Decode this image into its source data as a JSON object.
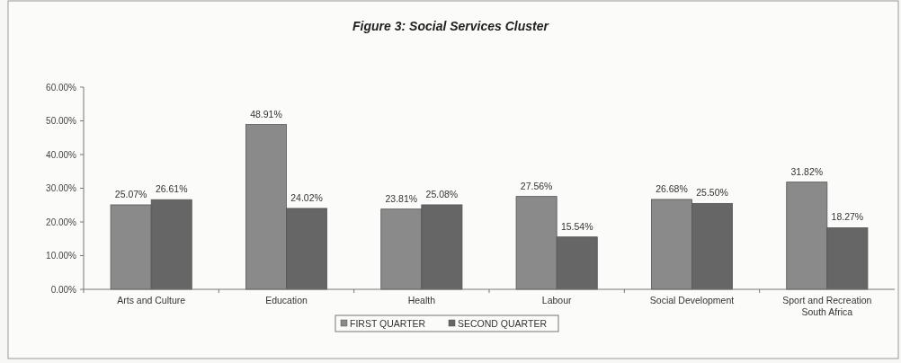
{
  "chart_data": {
    "type": "bar",
    "title": "Figure 3: Social Services Cluster",
    "categories": [
      "Arts and Culture",
      "Education",
      "Health",
      "Labour",
      "Social Development",
      "Sport and Recreation South Africa"
    ],
    "series": [
      {
        "name": "FIRST QUARTER",
        "color": "#8a8a8a",
        "values": [
          25.07,
          48.91,
          23.81,
          27.56,
          26.68,
          31.82
        ],
        "value_labels": [
          "25.07%",
          "48.91%",
          "23.81%",
          "27.56%",
          "26.68%",
          "31.82%"
        ]
      },
      {
        "name": "SECOND QUARTER",
        "color": "#666666",
        "values": [
          26.61,
          24.02,
          25.08,
          15.54,
          25.5,
          18.27
        ],
        "value_labels": [
          "26.61%",
          "24.02%",
          "25.08%",
          "15.54%",
          "25.50%",
          "18.27%"
        ]
      }
    ],
    "ylim": [
      0,
      60
    ],
    "yticks": [
      {
        "value": 0,
        "label": "0.00%"
      },
      {
        "value": 10,
        "label": "10.00%"
      },
      {
        "value": 20,
        "label": "20.00%"
      },
      {
        "value": 30,
        "label": "30.00%"
      },
      {
        "value": 40,
        "label": "40.00%"
      },
      {
        "value": 50,
        "label": "50.00%"
      },
      {
        "value": 60,
        "label": "60.00%"
      }
    ],
    "legend": "bottom"
  }
}
